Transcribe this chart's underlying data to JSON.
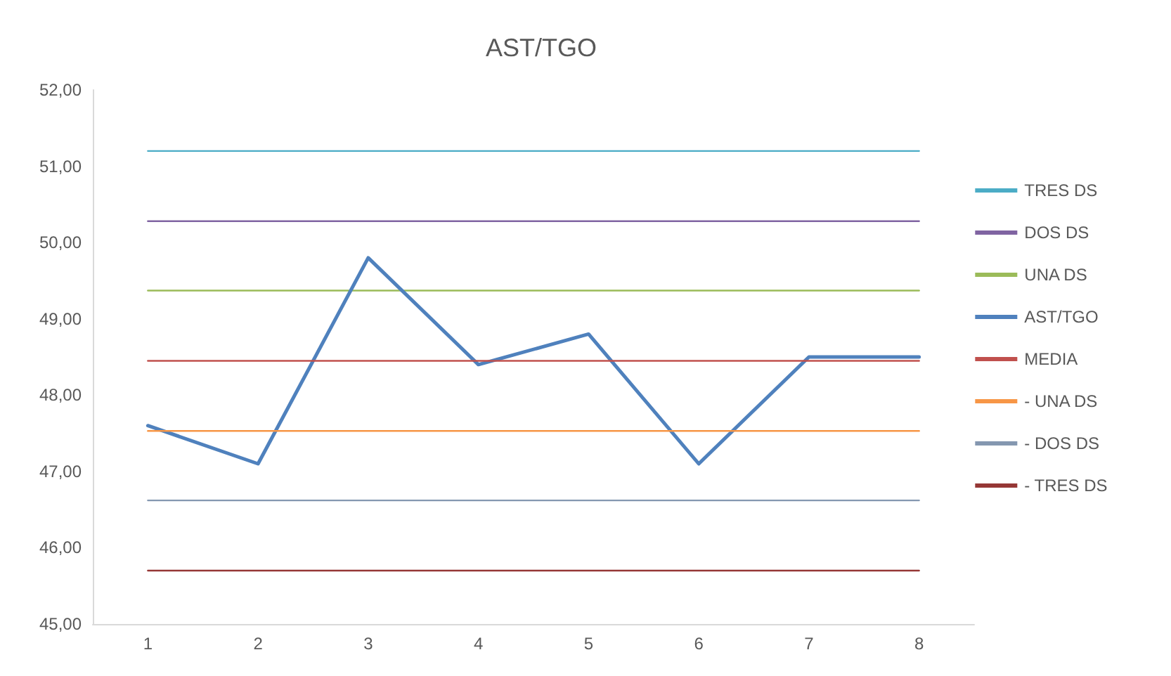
{
  "chart_data": {
    "type": "line",
    "title": "AST/TGO",
    "categories": [
      "1",
      "2",
      "3",
      "4",
      "5",
      "6",
      "7",
      "8"
    ],
    "series": [
      {
        "name": "TRES DS",
        "color": "#4bacc6",
        "values": [
          51.2,
          51.2,
          51.2,
          51.2,
          51.2,
          51.2,
          51.2,
          51.2
        ]
      },
      {
        "name": "DOS DS",
        "color": "#8064a2",
        "values": [
          50.28,
          50.28,
          50.28,
          50.28,
          50.28,
          50.28,
          50.28,
          50.28
        ]
      },
      {
        "name": "UNA DS",
        "color": "#9bbb59",
        "values": [
          49.37,
          49.37,
          49.37,
          49.37,
          49.37,
          49.37,
          49.37,
          49.37
        ]
      },
      {
        "name": "AST/TGO",
        "color": "#4f81bd",
        "values": [
          47.6,
          47.1,
          49.8,
          48.4,
          48.8,
          47.1,
          48.5,
          48.5
        ]
      },
      {
        "name": "MEDIA",
        "color": "#c0504d",
        "values": [
          48.45,
          48.45,
          48.45,
          48.45,
          48.45,
          48.45,
          48.45,
          48.45
        ]
      },
      {
        "name": "- UNA DS",
        "color": "#f79646",
        "values": [
          47.53,
          47.53,
          47.53,
          47.53,
          47.53,
          47.53,
          47.53,
          47.53
        ]
      },
      {
        "name": "- DOS DS",
        "color": "#8497b0",
        "values": [
          46.62,
          46.62,
          46.62,
          46.62,
          46.62,
          46.62,
          46.62,
          46.62
        ]
      },
      {
        "name": "- TRES DS",
        "color": "#953735",
        "values": [
          45.7,
          45.7,
          45.7,
          45.7,
          45.7,
          45.7,
          45.7,
          45.7
        ]
      }
    ],
    "ylim": [
      45,
      52
    ],
    "yticks": [
      {
        "value": 45,
        "label": "45,00"
      },
      {
        "value": 46,
        "label": "46,00"
      },
      {
        "value": 47,
        "label": "47,00"
      },
      {
        "value": 48,
        "label": "48,00"
      },
      {
        "value": 49,
        "label": "49,00"
      },
      {
        "value": 50,
        "label": "50,00"
      },
      {
        "value": 51,
        "label": "51,00"
      },
      {
        "value": 52,
        "label": "52,00"
      }
    ],
    "grid": false,
    "legend": "right",
    "marker": "none",
    "line_style": "solid"
  }
}
